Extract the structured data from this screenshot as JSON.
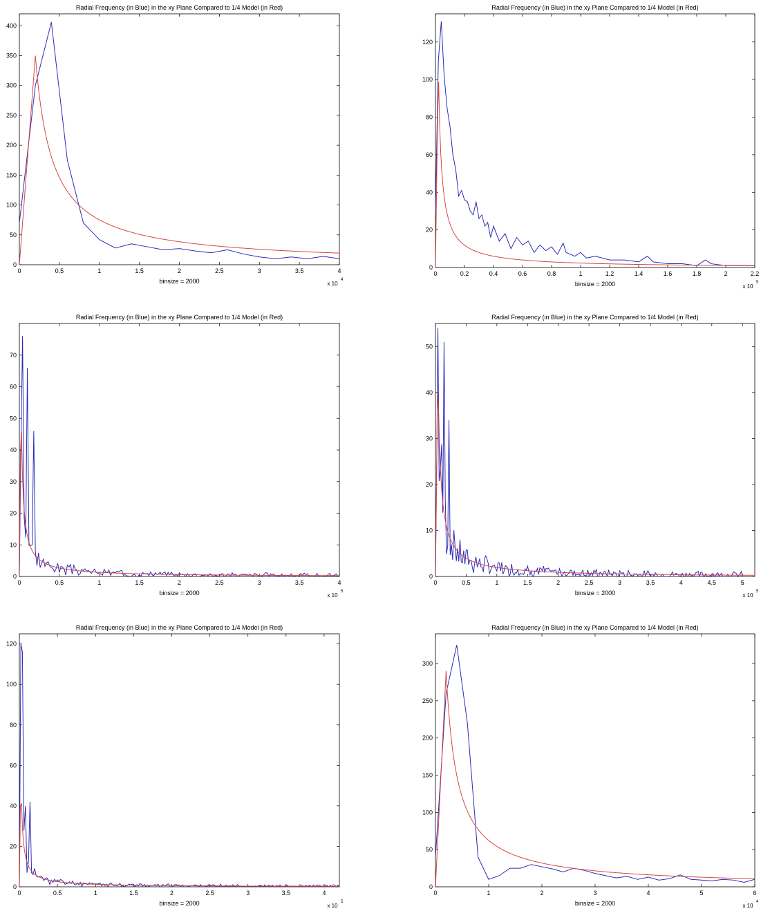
{
  "colors": {
    "blue": "#2b2bb8",
    "red": "#d64545",
    "axes": "#000000",
    "background": "#ffffff"
  },
  "chart_data": [
    {
      "type": "line",
      "title": "Radial Frequency (in Blue) in the xy Plane Compared to 1/4 Model (in Red)",
      "xlabel": "binsize = 2000",
      "x_multiplier": "x 10",
      "x_multiplier_exp": "4",
      "xlim": [
        0,
        40000
      ],
      "ylim": [
        0,
        420
      ],
      "xticks": [
        0,
        5000,
        10000,
        15000,
        20000,
        25000,
        30000,
        35000,
        40000
      ],
      "xtick_labels": [
        "0",
        "0.5",
        "1",
        "1.5",
        "2",
        "2.5",
        "3",
        "3.5",
        "4"
      ],
      "yticks": [
        0,
        50,
        100,
        150,
        200,
        250,
        300,
        350,
        400
      ],
      "ytick_labels": [
        "0",
        "50",
        "100",
        "150",
        "200",
        "250",
        "300",
        "350",
        "400"
      ],
      "grid": false,
      "series": [
        {
          "color": "blue",
          "x": [
            0,
            2000,
            4000,
            6000,
            8000,
            10000,
            12000,
            14000,
            16000,
            18000,
            20000,
            22000,
            24000,
            26000,
            28000,
            30000,
            32000,
            34000,
            36000,
            38000,
            40000
          ],
          "y": [
            70,
            300,
            406,
            175,
            70,
            42,
            28,
            35,
            30,
            25,
            27,
            23,
            20,
            25,
            18,
            13,
            10,
            13,
            10,
            14,
            10
          ]
        },
        {
          "color": "red",
          "model": "peak",
          "x_peak": 2000,
          "y_peak": 350
        }
      ]
    },
    {
      "type": "line",
      "title": "Radial Frequency (in Blue) in the xy Plane Compared to 1/4 Model (in Red)",
      "xlabel": "binsize = 2000",
      "x_multiplier": "x 10",
      "x_multiplier_exp": "5",
      "xlim": [
        0,
        220000
      ],
      "ylim": [
        0,
        135
      ],
      "xticks": [
        0,
        20000,
        40000,
        60000,
        80000,
        100000,
        120000,
        140000,
        160000,
        180000,
        200000,
        220000
      ],
      "xtick_labels": [
        "0",
        "0.2",
        "0.4",
        "0.6",
        "0.8",
        "1",
        "1.2",
        "1.4",
        "1.6",
        "1.8",
        "2",
        "2.2"
      ],
      "yticks": [
        0,
        20,
        40,
        60,
        80,
        100,
        120
      ],
      "ytick_labels": [
        "0",
        "20",
        "40",
        "60",
        "80",
        "100",
        "120"
      ],
      "grid": false,
      "series": [
        {
          "color": "blue",
          "x": [
            0,
            2000,
            4000,
            6000,
            8000,
            10000,
            12000,
            14000,
            16000,
            18000,
            20000,
            22000,
            24000,
            26000,
            28000,
            30000,
            32000,
            34000,
            36000,
            38000,
            40000,
            44000,
            48000,
            52000,
            56000,
            60000,
            64000,
            68000,
            72000,
            76000,
            80000,
            84000,
            88000,
            90000,
            96000,
            100000,
            104000,
            110000,
            120000,
            130000,
            140000,
            146000,
            150000,
            160000,
            170000,
            180000,
            186000,
            190000,
            200000,
            210000,
            220000
          ],
          "y": [
            30,
            110,
            131,
            102,
            85,
            75,
            60,
            52,
            38,
            41,
            36,
            35,
            30,
            28,
            35,
            26,
            28,
            22,
            24,
            16,
            22,
            14,
            18,
            10,
            16,
            12,
            14,
            8,
            12,
            9,
            11,
            7,
            13,
            8,
            6,
            8,
            5,
            6,
            4,
            4,
            3,
            6,
            3,
            2,
            2,
            1,
            4,
            2,
            1,
            1,
            1
          ]
        },
        {
          "color": "red",
          "model": "peak",
          "x_peak": 2000,
          "y_peak": 108
        }
      ]
    },
    {
      "type": "line",
      "title": "Radial Frequency (in Blue) in the xy Plane Compared to 1/4 Model (in Red)",
      "xlabel": "binsize = 2000",
      "x_multiplier": "x 10",
      "x_multiplier_exp": "5",
      "xlim": [
        0,
        400000
      ],
      "ylim": [
        0,
        80
      ],
      "xticks": [
        0,
        50000,
        100000,
        150000,
        200000,
        250000,
        300000,
        350000,
        400000
      ],
      "xtick_labels": [
        "0",
        "0.5",
        "1",
        "1.5",
        "2",
        "2.5",
        "3",
        "3.5",
        "4"
      ],
      "yticks": [
        0,
        10,
        20,
        30,
        40,
        50,
        60,
        70
      ],
      "ytick_labels": [
        "0",
        "10",
        "20",
        "30",
        "40",
        "50",
        "60",
        "70"
      ],
      "grid": false,
      "series": [
        {
          "color": "blue",
          "noise": {
            "seed": 3,
            "xmin": 0,
            "xmax": 400000,
            "step": 2000,
            "amp": 0.55,
            "spikes": [
              [
                4000,
                76
              ],
              [
                10000,
                66
              ],
              [
                18000,
                46
              ]
            ]
          }
        },
        {
          "color": "red",
          "model": "peak",
          "x_peak": 2000,
          "y_peak": 60
        }
      ]
    },
    {
      "type": "line",
      "title": "Radial Frequency (in Blue) in the xy Plane Compared to 1/4 Model (in Red)",
      "xlabel": "binsize = 2000",
      "x_multiplier": "x 10",
      "x_multiplier_exp": "5",
      "xlim": [
        0,
        520000
      ],
      "ylim": [
        0,
        55
      ],
      "xticks": [
        0,
        50000,
        100000,
        150000,
        200000,
        250000,
        300000,
        350000,
        400000,
        450000,
        500000
      ],
      "xtick_labels": [
        "0",
        "0.5",
        "1",
        "1.5",
        "2",
        "2.5",
        "3",
        "3.5",
        "4",
        "4.5",
        "5"
      ],
      "yticks": [
        0,
        10,
        20,
        30,
        40,
        50
      ],
      "ytick_labels": [
        "0",
        "10",
        "20",
        "30",
        "40",
        "50"
      ],
      "grid": false,
      "series": [
        {
          "color": "blue",
          "noise": {
            "seed": 7,
            "xmin": 0,
            "xmax": 500000,
            "step": 2000,
            "amp": 0.65,
            "spikes": [
              [
                4000,
                54
              ],
              [
                14000,
                51
              ],
              [
                22000,
                34
              ]
            ]
          }
        },
        {
          "color": "red",
          "model": "peak",
          "x_peak": 4000,
          "y_peak": 46
        }
      ]
    },
    {
      "type": "line",
      "title": "Radial Frequency (in Blue) in the xy Plane Compared to 1/4 Model (in Red)",
      "xlabel": "binsize = 2000",
      "x_multiplier": "x 10",
      "x_multiplier_exp": "5",
      "xlim": [
        0,
        420000
      ],
      "ylim": [
        0,
        125
      ],
      "xticks": [
        0,
        50000,
        100000,
        150000,
        200000,
        250000,
        300000,
        350000,
        400000
      ],
      "xtick_labels": [
        "0",
        "0.5",
        "1",
        "1.5",
        "2",
        "2.5",
        "3",
        "3.5",
        "4"
      ],
      "yticks": [
        0,
        20,
        40,
        60,
        80,
        100,
        120
      ],
      "ytick_labels": [
        "0",
        "20",
        "40",
        "60",
        "80",
        "100",
        "120"
      ],
      "grid": false,
      "series": [
        {
          "color": "blue",
          "noise": {
            "seed": 11,
            "xmin": 0,
            "xmax": 420000,
            "step": 2000,
            "amp": 0.5,
            "spikes": [
              [
                2000,
                120
              ],
              [
                4000,
                116
              ],
              [
                8000,
                40
              ],
              [
                14000,
                42
              ]
            ]
          }
        },
        {
          "color": "red",
          "model": "peak",
          "x_peak": 2000,
          "y_peak": 57
        }
      ]
    },
    {
      "type": "line",
      "title": "Radial Frequency (in Blue) in the xy Plane Compared to 1/4 Model (in Red)",
      "xlabel": "binsize = 2000",
      "x_multiplier": "x 10",
      "x_multiplier_exp": "4",
      "xlim": [
        0,
        60000
      ],
      "ylim": [
        0,
        340
      ],
      "xticks": [
        0,
        10000,
        20000,
        30000,
        40000,
        50000,
        60000
      ],
      "xtick_labels": [
        "0",
        "1",
        "2",
        "3",
        "4",
        "5",
        "6"
      ],
      "yticks": [
        0,
        50,
        100,
        150,
        200,
        250,
        300
      ],
      "ytick_labels": [
        "0",
        "50",
        "100",
        "150",
        "200",
        "250",
        "300"
      ],
      "grid": false,
      "series": [
        {
          "color": "blue",
          "x": [
            0,
            2000,
            4000,
            6000,
            8000,
            10000,
            12000,
            14000,
            16000,
            18000,
            20000,
            22000,
            24000,
            26000,
            28000,
            30000,
            32000,
            34000,
            36000,
            38000,
            40000,
            42000,
            44000,
            46000,
            48000,
            50000,
            52000,
            54000,
            56000,
            58000,
            60000
          ],
          "y": [
            40,
            260,
            325,
            220,
            40,
            10,
            15,
            25,
            25,
            30,
            27,
            24,
            20,
            25,
            22,
            18,
            15,
            12,
            14,
            10,
            13,
            9,
            11,
            16,
            10,
            9,
            8,
            10,
            9,
            6,
            10
          ]
        },
        {
          "color": "red",
          "model": "peak",
          "x_peak": 2000,
          "y_peak": 290
        }
      ]
    }
  ]
}
